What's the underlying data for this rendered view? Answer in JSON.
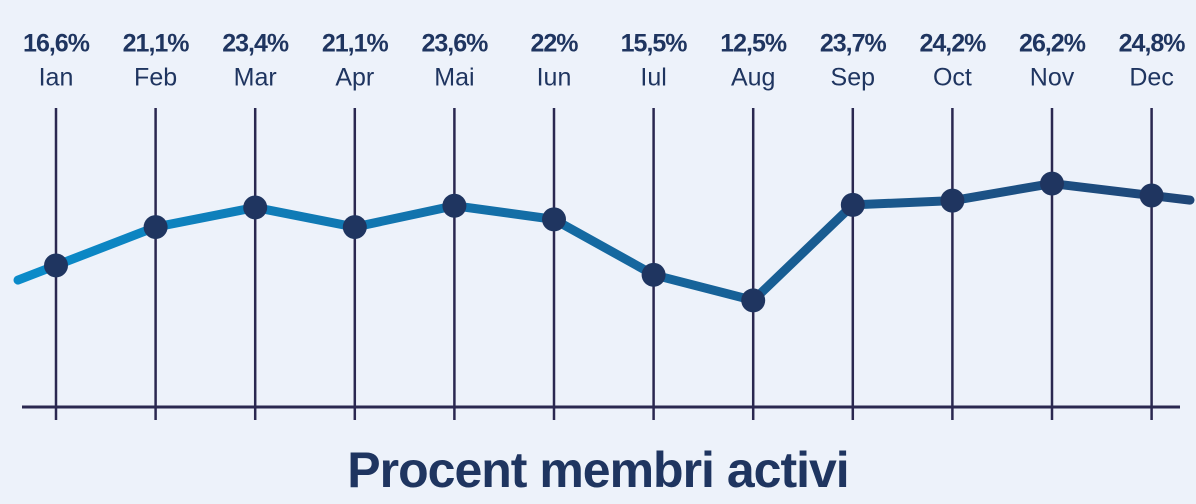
{
  "chart_data": {
    "type": "line",
    "title": "Procent membri activi",
    "categories": [
      "Ian",
      "Feb",
      "Mar",
      "Apr",
      "Mai",
      "Iun",
      "Iul",
      "Aug",
      "Sep",
      "Oct",
      "Nov",
      "Dec"
    ],
    "series": [
      {
        "values": [
          16.6,
          21.1,
          23.4,
          21.1,
          23.6,
          22,
          15.5,
          12.5,
          23.7,
          24.2,
          26.2,
          24.8
        ],
        "value_labels": [
          "16,6%",
          "21,1%",
          "23,4%",
          "21,1%",
          "23,6%",
          "22%",
          "15,5%",
          "12,5%",
          "23,7%",
          "24,2%",
          "26,2%",
          "24,8%"
        ],
        "colors": [
          "#0b8bc9",
          "#1f4677"
        ],
        "marker_color": "#1f3560"
      }
    ],
    "ylim": [
      0,
      36
    ]
  }
}
